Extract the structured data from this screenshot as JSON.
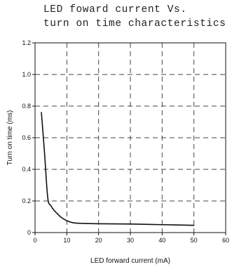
{
  "chart_data": {
    "type": "line",
    "title_lines": [
      "LED foward current Vs.",
      "turn on time characteristics"
    ],
    "xlabel": "LED forward current (mA)",
    "ylabel": "Turn on time (ms)",
    "xlim": [
      0,
      60
    ],
    "ylim": [
      0,
      1.2
    ],
    "x_ticks": [
      0,
      10,
      20,
      30,
      40,
      50,
      60
    ],
    "x_tick_labels": [
      "0",
      "10",
      "20",
      "30",
      "40",
      "50",
      "60"
    ],
    "y_ticks": [
      0,
      0.2,
      0.4,
      0.6,
      0.8,
      1.0,
      1.2
    ],
    "y_tick_labels": [
      "0",
      "0.2",
      "0.4",
      "0.6",
      "0.8",
      "1.0",
      "1.2"
    ],
    "grid": "dashed",
    "series": [
      {
        "color": "#111111",
        "x": [
          2,
          3,
          4,
          5,
          6,
          7,
          8,
          10,
          12,
          15,
          20,
          30,
          40,
          50
        ],
        "y": [
          0.76,
          0.5,
          0.22,
          0.17,
          0.14,
          0.12,
          0.1,
          0.075,
          0.062,
          0.058,
          0.056,
          0.054,
          0.05,
          0.046
        ]
      }
    ]
  }
}
